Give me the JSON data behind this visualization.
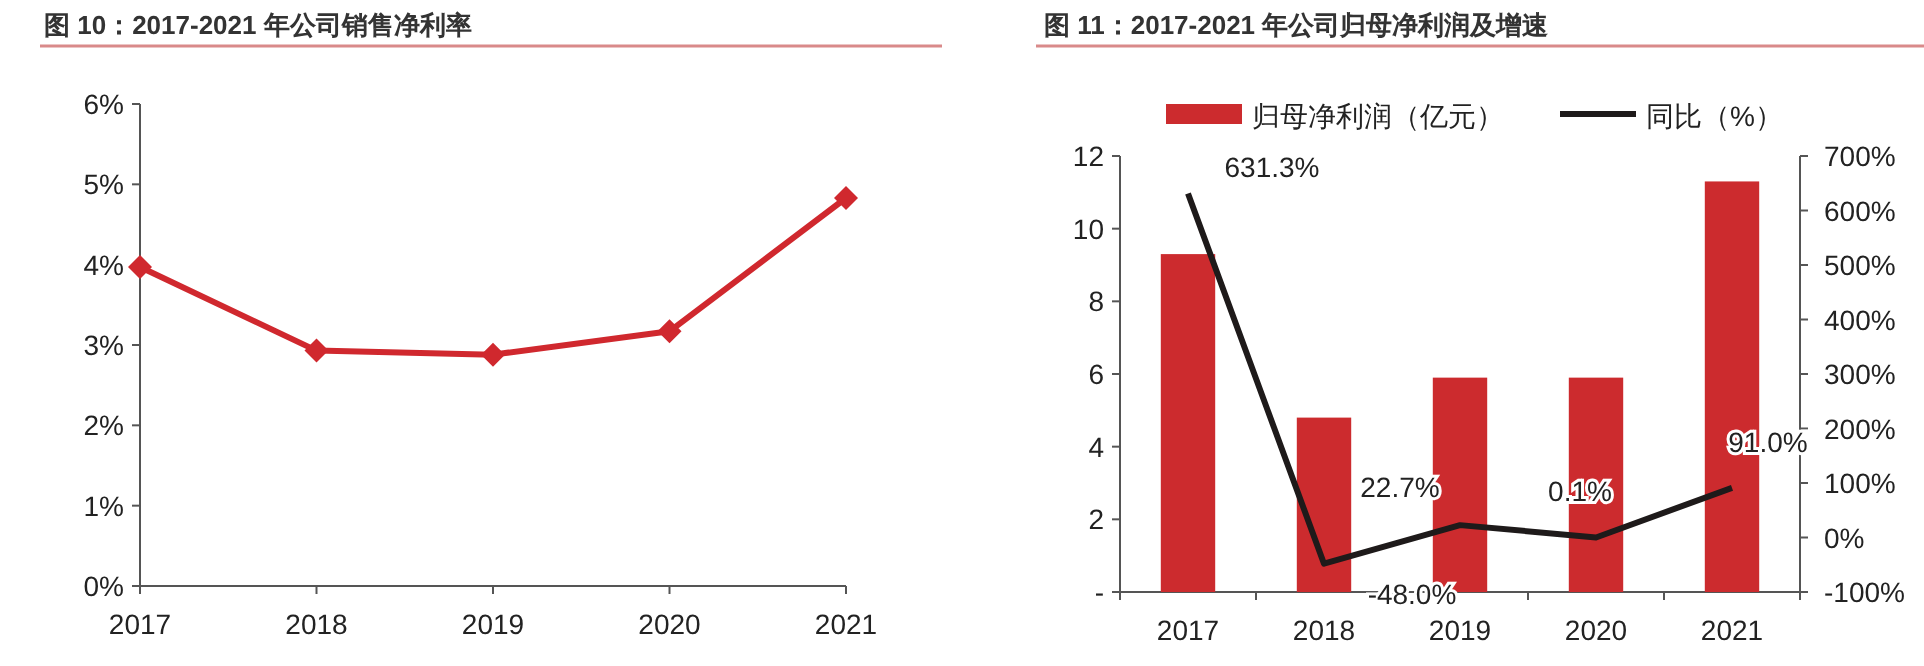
{
  "chart_data": [
    {
      "type": "line",
      "title": "图 10：2017-2021 年公司销售净利率",
      "categories": [
        "2017",
        "2018",
        "2019",
        "2020",
        "2021"
      ],
      "series": [
        {
          "color": "#d0282e",
          "values": [
            3.97,
            2.93,
            2.88,
            3.17,
            4.83
          ]
        }
      ],
      "ylim": [
        0,
        6
      ],
      "yticks": [
        {
          "value": 0,
          "label": "0%"
        },
        {
          "value": 1,
          "label": "1%"
        },
        {
          "value": 2,
          "label": "2%"
        },
        {
          "value": 3,
          "label": "3%"
        },
        {
          "value": 4,
          "label": "4%"
        },
        {
          "value": 5,
          "label": "5%"
        },
        {
          "value": 6,
          "label": "6%"
        }
      ],
      "marker": "diamond",
      "grid": false,
      "legend": false
    },
    {
      "type": "bar",
      "title": "图 11：2017-2021 年公司归母净利润及增速",
      "categories": [
        "2017",
        "2018",
        "2019",
        "2020",
        "2021"
      ],
      "series": [
        {
          "name": "归母净利润（亿元）",
          "color": "#cc2b2e",
          "values": [
            9.3,
            4.8,
            5.9,
            5.9,
            11.3
          ]
        },
        {
          "name": "同比（%）",
          "type": "line",
          "axis": "y2",
          "color": "#1e1a1a",
          "values": [
            631.3,
            -48.0,
            22.7,
            0.1,
            91.0
          ],
          "value_labels": [
            "631.3%",
            "-48.0%",
            "22.7%",
            "0.1%",
            "91.0%"
          ]
        }
      ],
      "ylim": [
        0,
        12
      ],
      "yticks": [
        {
          "value": 0,
          "label": "-"
        },
        2,
        4,
        6,
        8,
        10,
        12
      ],
      "y2lim": [
        -100,
        700
      ],
      "y2ticks": [
        {
          "value": -100,
          "label": "-100%"
        },
        {
          "value": 0,
          "label": "0%"
        },
        {
          "value": 100,
          "label": "100%"
        },
        {
          "value": 200,
          "label": "200%"
        },
        {
          "value": 300,
          "label": "300%"
        },
        {
          "value": 400,
          "label": "400%"
        },
        {
          "value": 500,
          "label": "500%"
        },
        {
          "value": 600,
          "label": "600%"
        },
        {
          "value": 700,
          "label": "700%"
        }
      ],
      "legend": "top",
      "grid": false,
      "marker": "none"
    }
  ]
}
